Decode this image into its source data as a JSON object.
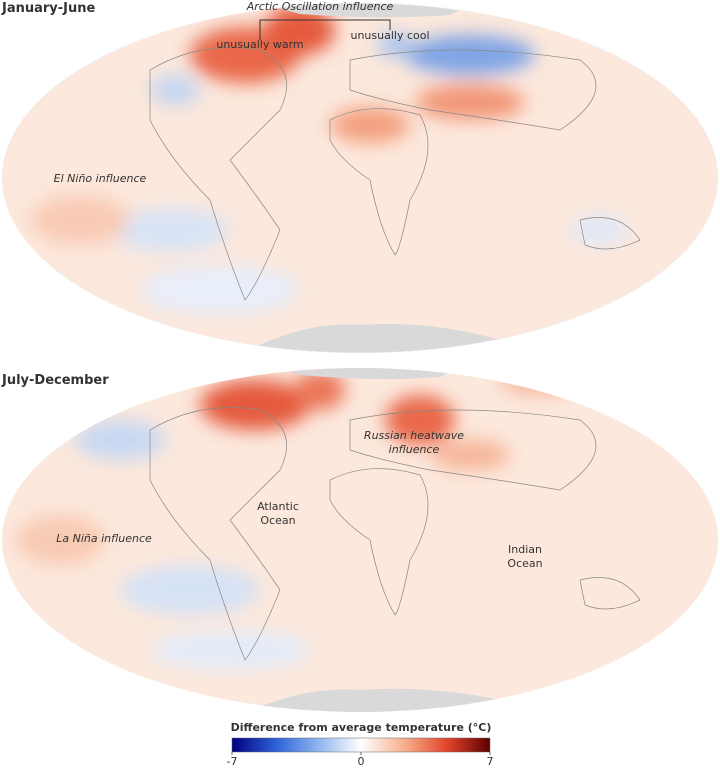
{
  "panels": [
    {
      "title": "January-June",
      "annotations": [
        {
          "lines": [
            "Arctic Oscillation influence"
          ],
          "italic": true
        },
        {
          "lines": [
            "unusually warm"
          ],
          "italic": false
        },
        {
          "lines": [
            "unusually cool"
          ],
          "italic": false
        },
        {
          "lines": [
            "El Niño influence"
          ],
          "italic": true
        }
      ]
    },
    {
      "title": "July-December",
      "annotations": [
        {
          "lines": [
            "Russian heatwave",
            "influence"
          ],
          "italic": true
        },
        {
          "lines": [
            "Atlantic",
            "Ocean"
          ],
          "italic": false
        },
        {
          "lines": [
            "La Niña influence"
          ],
          "italic": true
        },
        {
          "lines": [
            "Indian",
            "Ocean"
          ],
          "italic": false
        }
      ]
    }
  ],
  "colorbar": {
    "title": "Difference from average temperature (°C)",
    "range": [
      -7,
      7
    ],
    "ticks": [
      -7,
      0,
      7
    ],
    "colors": [
      "#00007f",
      "#2c5fd6",
      "#8fb4ee",
      "#ffffff",
      "#f6b08e",
      "#e2452a",
      "#5c0000"
    ]
  }
}
